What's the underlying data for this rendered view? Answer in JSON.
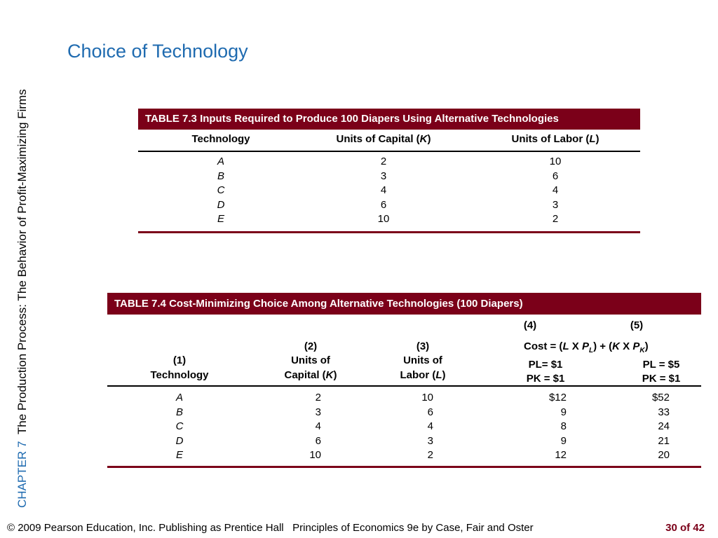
{
  "sidebar": {
    "chapter": "CHAPTER 7",
    "subtitle": "The Production Process:  The Behavior of Profit-Maximizing Firms"
  },
  "title": "Choice of Technology",
  "table73": {
    "caption": "TABLE 7.3  Inputs Required to Produce 100 Diapers Using Alternative Technologies",
    "headers": {
      "technology": "Technology",
      "capital_pre": "Units of Capital (",
      "capital_sym": "K",
      "labor_pre": "Units of Labor (",
      "labor_sym": "L",
      "close": ")"
    },
    "rows": [
      {
        "tech": "A",
        "capital": "2",
        "labor": "10"
      },
      {
        "tech": "B",
        "capital": "3",
        "labor": "6"
      },
      {
        "tech": "C",
        "capital": "4",
        "labor": "4"
      },
      {
        "tech": "D",
        "capital": "6",
        "labor": "3"
      },
      {
        "tech": "E",
        "capital": "10",
        "labor": "2"
      }
    ]
  },
  "table74": {
    "caption": "TABLE 7.4   Cost-Minimizing Choice Among Alternative Technologies (100 Diapers)",
    "headers": {
      "col1_num": "(1)",
      "col1_label": "Technology",
      "col2_num": "(2)",
      "col2_line1": "Units of",
      "col2_line2_pre": "Capital (",
      "col2_sym": "K",
      "col3_num": "(3)",
      "col3_line1": "Units of",
      "col3_line2_pre": "Labor (",
      "col3_sym": "L",
      "close": ")",
      "col4_num": "(4)",
      "col5_num": "(5)",
      "cost_formula_a": "Cost = (",
      "cost_L": "L",
      "cost_X": " X ",
      "cost_P": "P",
      "cost_subL": "L",
      "cost_plus": ") + (",
      "cost_K": "K",
      "cost_subK": "K",
      "cost_end": ")",
      "col4_pl": "PL= $1",
      "col4_pk": "PK = $1",
      "col5_pl": "PL = $5",
      "col5_pk": "PK = $1"
    },
    "rows": [
      {
        "tech": "A",
        "capital": "2",
        "labor": "10",
        "cost1": "$12",
        "cost2": "$52"
      },
      {
        "tech": "B",
        "capital": "3",
        "labor": "6",
        "cost1": "9",
        "cost2": "33"
      },
      {
        "tech": "C",
        "capital": "4",
        "labor": "4",
        "cost1": "8",
        "cost2": "24"
      },
      {
        "tech": "D",
        "capital": "6",
        "labor": "3",
        "cost1": "9",
        "cost2": "21"
      },
      {
        "tech": "E",
        "capital": "10",
        "labor": "2",
        "cost1": "12",
        "cost2": "20"
      }
    ]
  },
  "footer": {
    "copyright": "© 2009 Pearson Education, Inc. Publishing as Prentice Hall",
    "book": "Principles of Economics 9e by Case, Fair and Oster",
    "page": "30 of 42"
  },
  "colors": {
    "accent": "#1f6bb0",
    "table_header": "#7b0019"
  }
}
